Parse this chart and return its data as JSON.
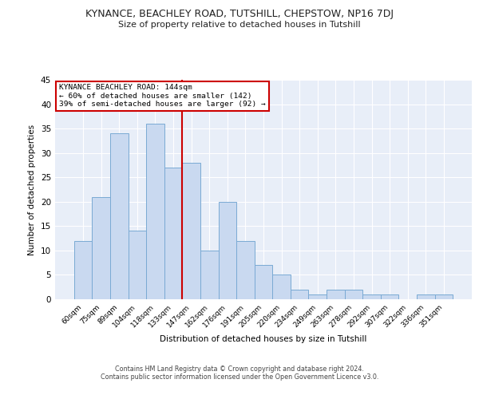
{
  "title": "KYNANCE, BEACHLEY ROAD, TUTSHILL, CHEPSTOW, NP16 7DJ",
  "subtitle": "Size of property relative to detached houses in Tutshill",
  "xlabel": "Distribution of detached houses by size in Tutshill",
  "ylabel": "Number of detached properties",
  "categories": [
    "60sqm",
    "75sqm",
    "89sqm",
    "104sqm",
    "118sqm",
    "133sqm",
    "147sqm",
    "162sqm",
    "176sqm",
    "191sqm",
    "205sqm",
    "220sqm",
    "234sqm",
    "249sqm",
    "263sqm",
    "278sqm",
    "292sqm",
    "307sqm",
    "322sqm",
    "336sqm",
    "351sqm"
  ],
  "values": [
    12,
    21,
    34,
    14,
    36,
    27,
    28,
    10,
    20,
    12,
    7,
    5,
    2,
    1,
    2,
    2,
    1,
    1,
    0,
    1,
    1
  ],
  "bar_color": "#c9d9f0",
  "bar_edgecolor": "#7aaad4",
  "vline_color": "#cc0000",
  "annotation_text": "KYNANCE BEACHLEY ROAD: 144sqm\n← 60% of detached houses are smaller (142)\n39% of semi-detached houses are larger (92) →",
  "annotation_box_color": "#cc0000",
  "ylim": [
    0,
    45
  ],
  "yticks": [
    0,
    5,
    10,
    15,
    20,
    25,
    30,
    35,
    40,
    45
  ],
  "background_color": "#e8eef8",
  "grid_color": "#ffffff",
  "fig_background": "#ffffff",
  "footer_line1": "Contains HM Land Registry data © Crown copyright and database right 2024.",
  "footer_line2": "Contains public sector information licensed under the Open Government Licence v3.0."
}
